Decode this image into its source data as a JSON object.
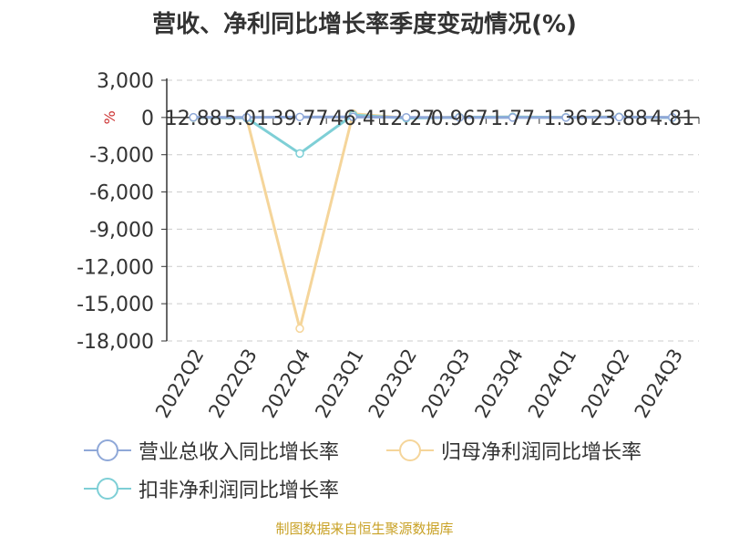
{
  "title": "营收、净利同比增长率季度变动情况(%)",
  "source": "制图数据来自恒生聚源数据库",
  "colors": {
    "revenue": "#8FA8D8",
    "net_profit": "#F5D59A",
    "deducted_profit": "#7ECFD6",
    "unit_label": "#CC3333"
  },
  "chart_data": {
    "type": "line",
    "title": "营收、净利同比增长率季度变动情况(%)",
    "x": [
      "2022Q2",
      "2022Q3",
      "2022Q4",
      "2023Q1",
      "2023Q2",
      "2023Q3",
      "2023Q4",
      "2024Q1",
      "2024Q2",
      "2024Q3"
    ],
    "ylabel": "%",
    "ylim": [
      -18000,
      3000
    ],
    "yticks": [
      "3,000",
      "0",
      "-3,000",
      "-6,000",
      "-9,000",
      "-12,000",
      "-15,000",
      "-18,000"
    ],
    "grid": true,
    "legend_position": "bottom",
    "series": [
      {
        "name": "营业总收入同比增长率",
        "values": [
          12.88,
          5.01,
          39.77,
          46.4,
          12.27,
          0.967,
          1.77,
          1.36,
          23.88,
          4.81
        ]
      },
      {
        "name": "归母净利润同比增长率",
        "values": [
          -20,
          -30,
          -17000,
          300,
          -40,
          30,
          40,
          20,
          50,
          -10
        ]
      },
      {
        "name": "扣非净利润同比增长率",
        "values": [
          0,
          -40,
          -2900,
          200,
          -60,
          20,
          40,
          10,
          40,
          -10
        ]
      }
    ],
    "data_labels": [
      "12.88",
      "5.01",
      "39.77",
      "46.4",
      "12.27",
      "0.967",
      "1.77",
      "1.36",
      "23.88",
      "4.81"
    ]
  },
  "legend": {
    "items": [
      "营业总收入同比增长率",
      "归母净利润同比增长率",
      "扣非净利润同比增长率"
    ]
  }
}
